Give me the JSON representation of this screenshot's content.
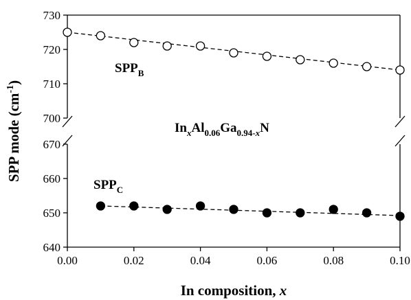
{
  "chart_data": {
    "type": "scatter",
    "xlabel": "In composition, ",
    "xlabel_var": "x",
    "ylabel_main": "SPP mode (cm",
    "ylabel_sup": "-1",
    "ylabel_close": ")",
    "xlim": [
      0.0,
      0.1
    ],
    "x_ticks": [
      "0.00",
      "0.02",
      "0.04",
      "0.06",
      "0.08",
      "0.10"
    ],
    "broken_y_axis": true,
    "panels": [
      {
        "ylim": [
          700,
          730
        ],
        "y_ticks": [
          "700",
          "710",
          "720",
          "730"
        ]
      },
      {
        "ylim": [
          640,
          670
        ],
        "y_ticks": [
          "640",
          "650",
          "660",
          "670"
        ]
      }
    ],
    "series": [
      {
        "name": "SPPB",
        "label_main": "SPP",
        "label_sub": "B",
        "marker": "open-circle",
        "trend": "dashed-linear",
        "trend_line": {
          "x": [
            0.0,
            0.1
          ],
          "y": [
            725.0,
            714.0
          ]
        },
        "x": [
          0.0,
          0.01,
          0.02,
          0.03,
          0.04,
          0.05,
          0.06,
          0.07,
          0.08,
          0.09,
          0.1
        ],
        "y": [
          725,
          724,
          722,
          721,
          721,
          719,
          718,
          717,
          716,
          715,
          714
        ]
      },
      {
        "name": "SPPC",
        "label_main": "SPP",
        "label_sub": "C",
        "marker": "filled-circle",
        "trend": "dashed-linear",
        "trend_line": {
          "x": [
            0.01,
            0.1
          ],
          "y": [
            652.0,
            649.2
          ]
        },
        "x": [
          0.01,
          0.02,
          0.03,
          0.04,
          0.05,
          0.06,
          0.07,
          0.08,
          0.09,
          0.1
        ],
        "y": [
          652,
          652,
          651,
          652,
          651,
          650,
          650,
          651,
          650,
          649
        ]
      }
    ],
    "annotation": {
      "parts": [
        {
          "t": "In",
          "sub": false
        },
        {
          "t": "x",
          "sub": true,
          "italic": true
        },
        {
          "t": "Al",
          "sub": false
        },
        {
          "t": "0.06",
          "sub": true
        },
        {
          "t": "Ga",
          "sub": false
        },
        {
          "t": "0.94-",
          "sub": true
        },
        {
          "t": "x",
          "sub": true,
          "italic": true
        },
        {
          "t": "N",
          "sub": false
        }
      ]
    }
  }
}
